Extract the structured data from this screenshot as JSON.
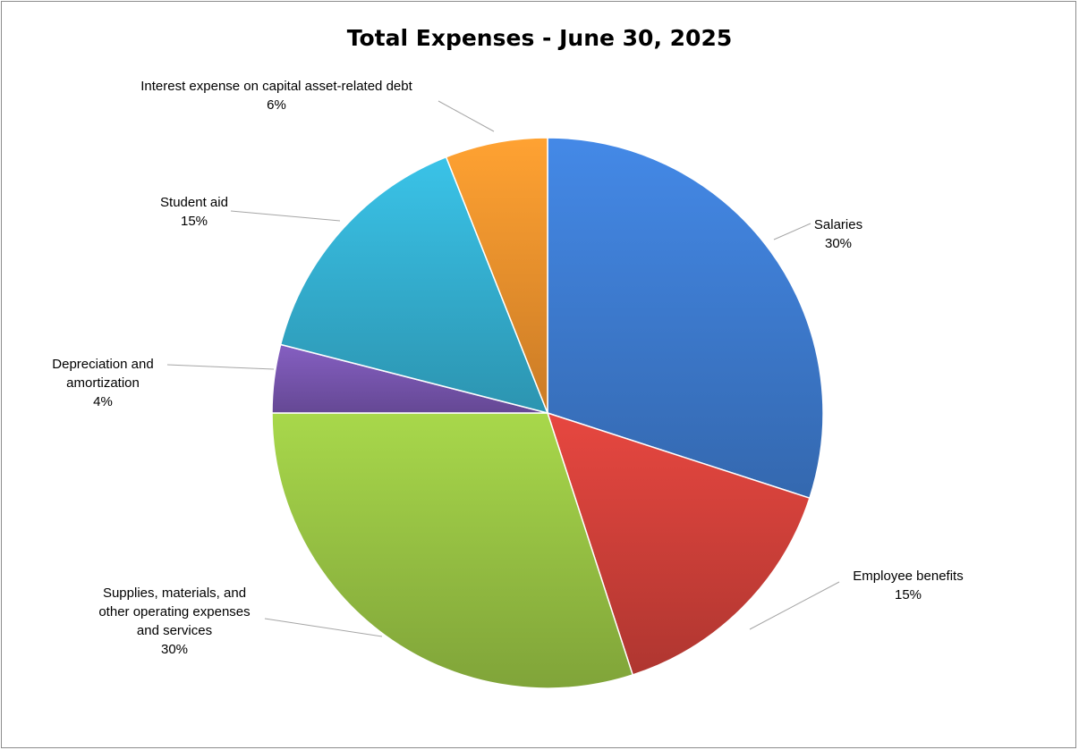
{
  "chart_data": {
    "type": "pie",
    "title": "Total Expenses - June 30, 2025",
    "slices": [
      {
        "label": "Salaries",
        "value": 30,
        "pct_label": "30%",
        "color": "#3f7fd6"
      },
      {
        "label": "Employee benefits",
        "value": 15,
        "pct_label": "15%",
        "color": "#d6423b"
      },
      {
        "label": "Supplies, materials, and other operating expenses and services",
        "value": 30,
        "pct_label": "30%",
        "color": "#9cc845"
      },
      {
        "label": "Depreciation and amortization",
        "value": 4,
        "pct_label": "4%",
        "color": "#7b58b4"
      },
      {
        "label": "Student aid",
        "value": 15,
        "pct_label": "15%",
        "color": "#36b5d7"
      },
      {
        "label": "Interest expense on capital asset-related debt",
        "value": 6,
        "pct_label": "6%",
        "color": "#f6962e"
      }
    ]
  }
}
